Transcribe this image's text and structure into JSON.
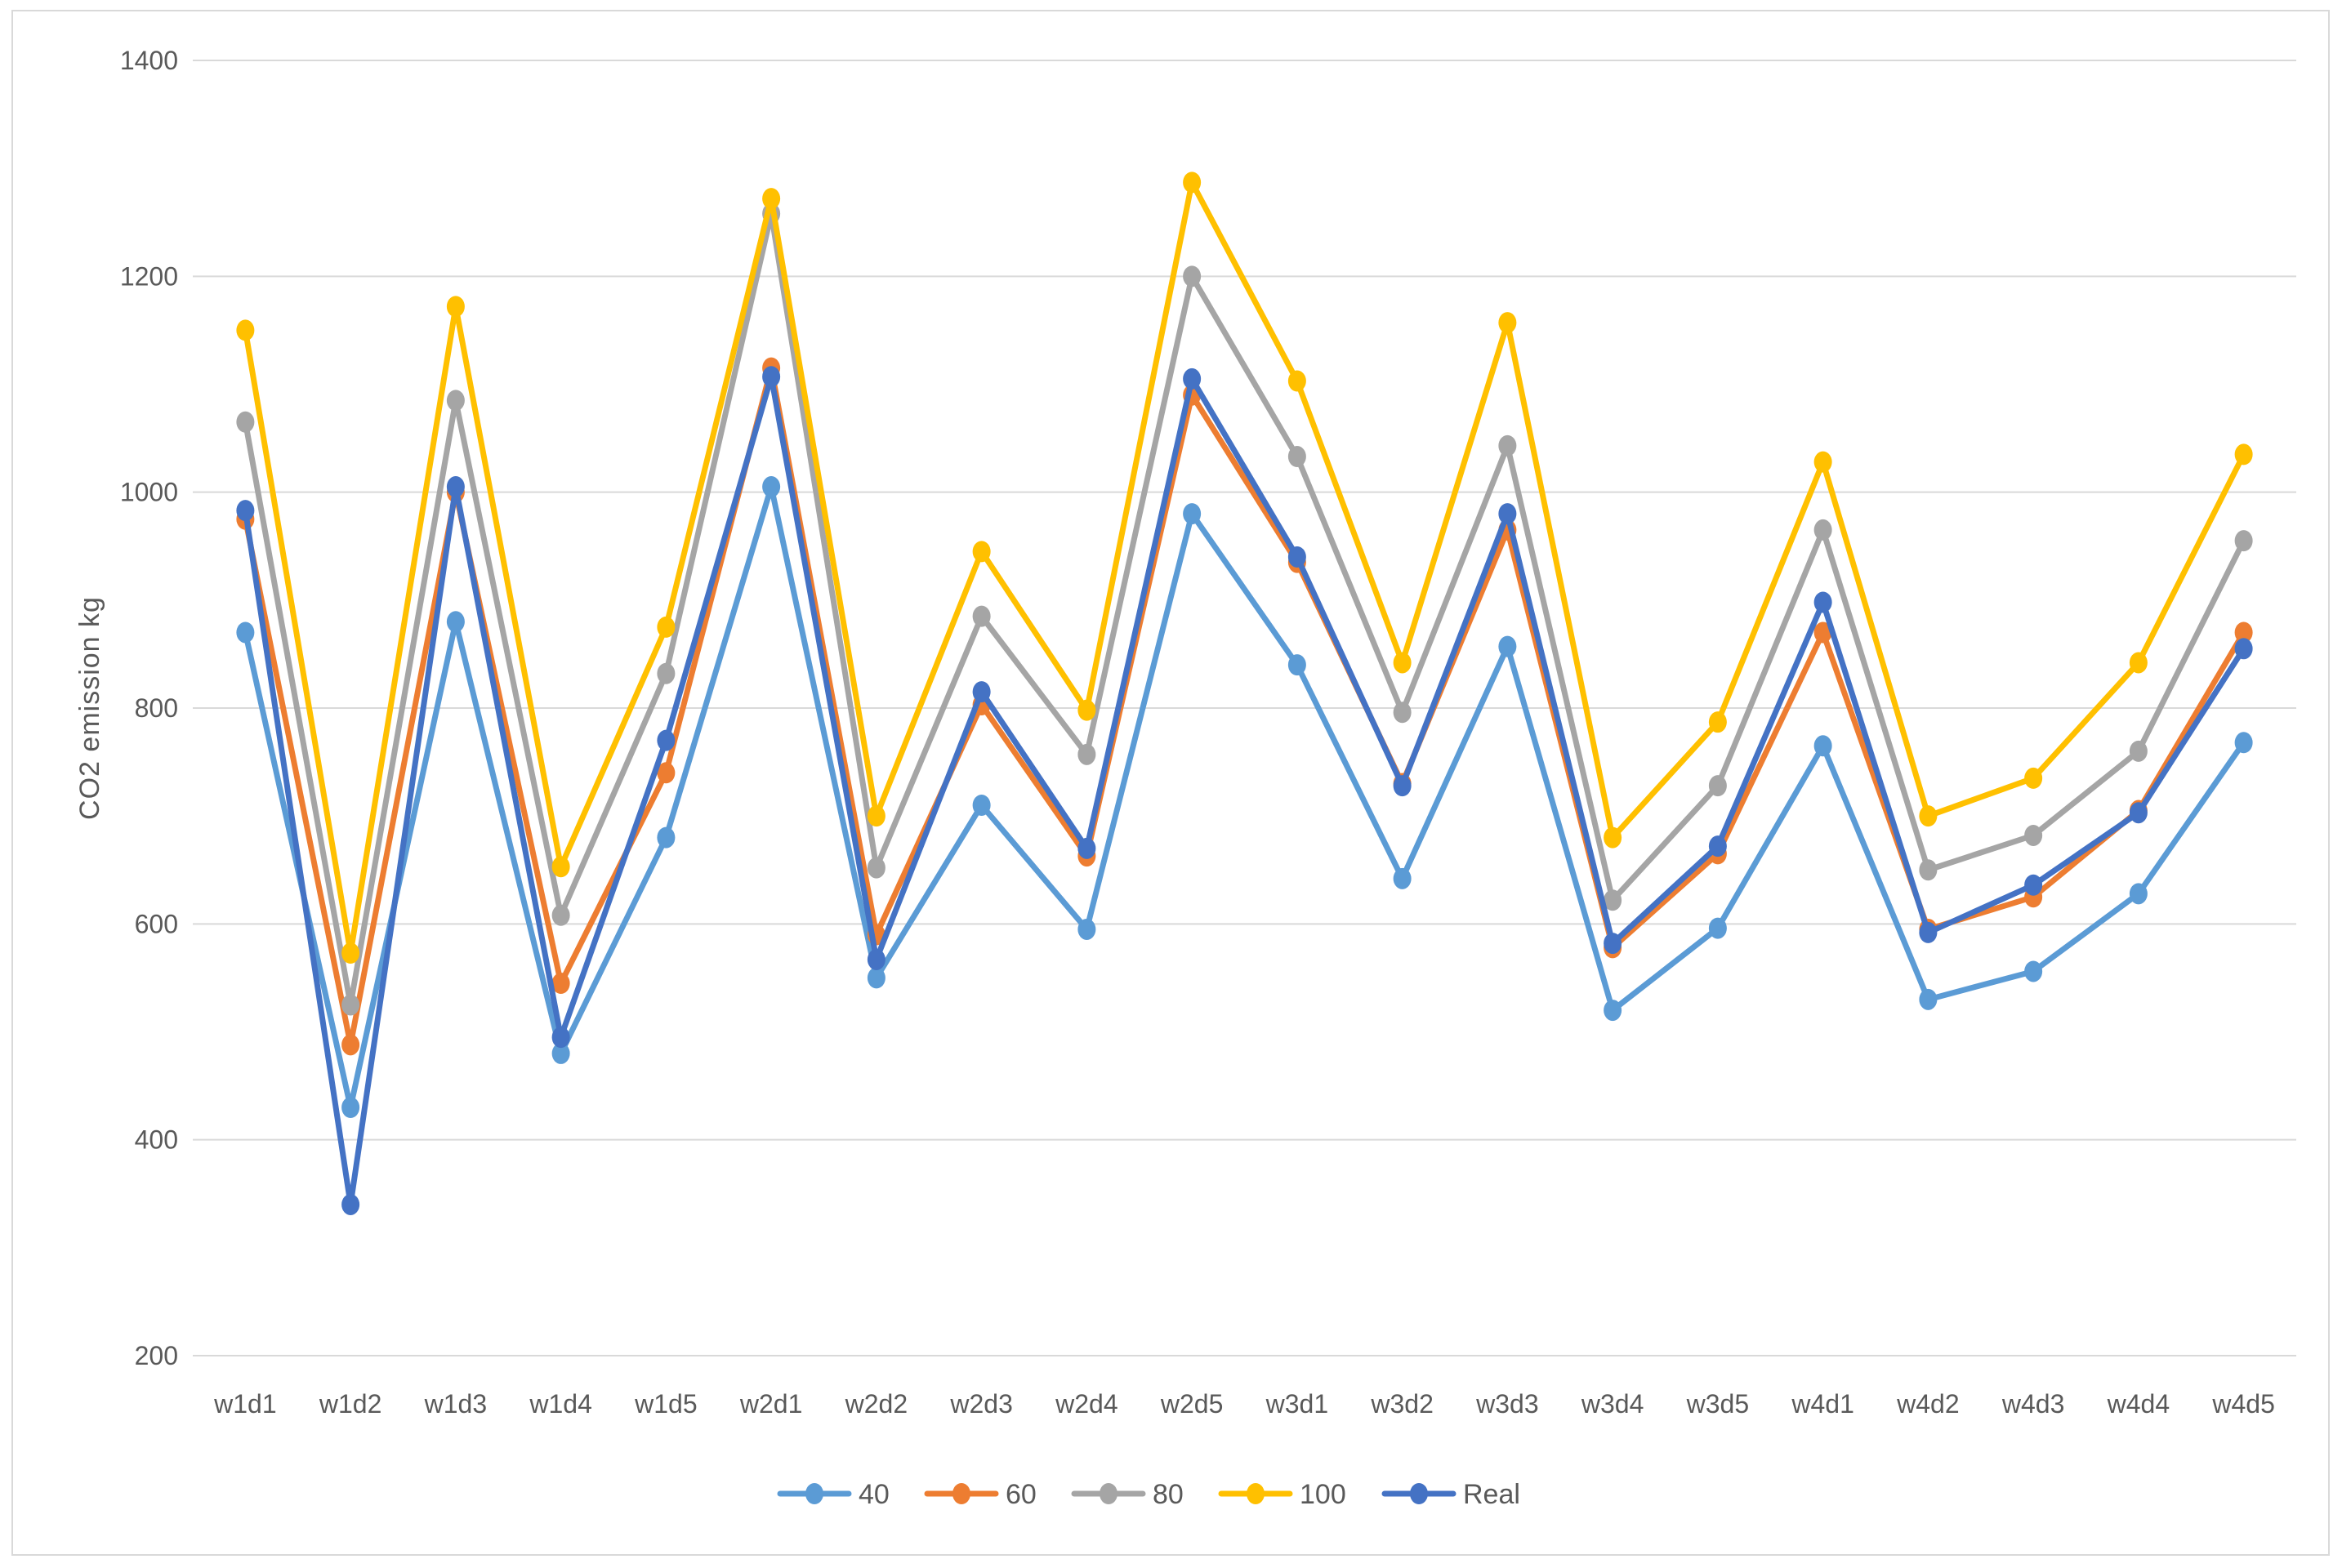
{
  "chart_data": {
    "type": "line",
    "title": "",
    "xlabel": "",
    "ylabel": "CO2 emission  kg",
    "ylim": [
      200,
      1400
    ],
    "yticks": [
      200,
      400,
      600,
      800,
      1000,
      1200,
      1400
    ],
    "grid": true,
    "legend_position": "bottom",
    "categories": [
      "w1d1",
      "w1d2",
      "w1d3",
      "w1d4",
      "w1d5",
      "w2d1",
      "w2d2",
      "w2d3",
      "w2d4",
      "w2d5",
      "w3d1",
      "w3d2",
      "w3d3",
      "w3d4",
      "w3d5",
      "w4d1",
      "w4d2",
      "w4d3",
      "w4d4",
      "w4d5"
    ],
    "series": [
      {
        "name": "40",
        "color": "#5b9bd5",
        "values": [
          870,
          430,
          880,
          480,
          680,
          1005,
          550,
          710,
          595,
          980,
          840,
          642,
          857,
          520,
          596,
          765,
          530,
          556,
          628,
          768
        ]
      },
      {
        "name": "60",
        "color": "#ed7d31",
        "values": [
          975,
          488,
          1000,
          545,
          740,
          1115,
          590,
          803,
          663,
          1090,
          935,
          730,
          965,
          578,
          665,
          870,
          595,
          625,
          705,
          870
        ]
      },
      {
        "name": "80",
        "color": "#a5a5a5",
        "values": [
          1065,
          525,
          1085,
          608,
          832,
          1258,
          652,
          885,
          757,
          1200,
          1033,
          796,
          1043,
          622,
          728,
          965,
          650,
          682,
          760,
          955
        ]
      },
      {
        "name": "100",
        "color": "#ffc000",
        "values": [
          1150,
          573,
          1172,
          653,
          875,
          1272,
          700,
          945,
          798,
          1287,
          1103,
          842,
          1157,
          680,
          787,
          1028,
          700,
          735,
          842,
          1035
        ]
      },
      {
        "name": "Real",
        "color": "#4472c4",
        "values": [
          983,
          340,
          1005,
          495,
          770,
          1107,
          567,
          815,
          670,
          1105,
          940,
          728,
          980,
          582,
          672,
          898,
          592,
          636,
          703,
          855
        ]
      }
    ]
  }
}
